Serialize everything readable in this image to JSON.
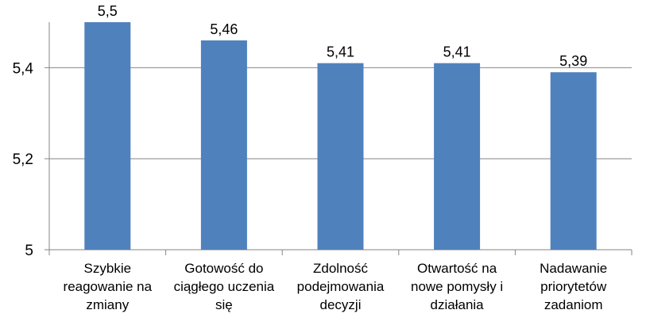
{
  "chart_data": {
    "type": "bar",
    "categories": [
      [
        "Szybkie",
        "reagowanie na",
        "zmiany"
      ],
      [
        "Gotowość do",
        "ciągłego uczenia",
        "się"
      ],
      [
        "Zdolność",
        "podejmowania",
        "decyzji"
      ],
      [
        "Otwartość na",
        "nowe pomysły i",
        "działania"
      ],
      [
        "Nadawanie",
        "priorytetów",
        "zadaniom"
      ]
    ],
    "values": [
      5.5,
      5.46,
      5.41,
      5.41,
      5.39
    ],
    "value_labels": [
      "5,5",
      "5,46",
      "5,41",
      "5,41",
      "5,39"
    ],
    "yticks": [
      {
        "value": 5.0,
        "label": "5"
      },
      {
        "value": 5.2,
        "label": "5,2"
      },
      {
        "value": 5.4,
        "label": "5,4"
      }
    ],
    "ylim": [
      5.0,
      5.5
    ],
    "grid": true,
    "bar_color": "#4F81BD",
    "gridline_color": "#868686",
    "axis_color": "#868686"
  }
}
